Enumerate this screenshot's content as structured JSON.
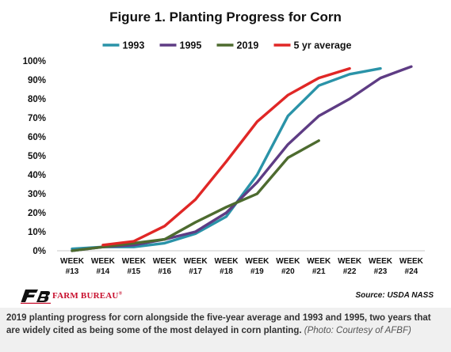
{
  "chart_data": {
    "type": "line",
    "title": "Figure 1. Planting Progress for Corn",
    "categories": [
      "WEEK #13",
      "WEEK #14",
      "WEEK #15",
      "WEEK #16",
      "WEEK #17",
      "WEEK #18",
      "WEEK #19",
      "WEEK #20",
      "WEEK #21",
      "WEEK #22",
      "WEEK #23",
      "WEEK #24"
    ],
    "category_lines": [
      [
        "WEEK",
        "#13"
      ],
      [
        "WEEK",
        "#14"
      ],
      [
        "WEEK",
        "#15"
      ],
      [
        "WEEK",
        "#16"
      ],
      [
        "WEEK",
        "#17"
      ],
      [
        "WEEK",
        "#18"
      ],
      [
        "WEEK",
        "#19"
      ],
      [
        "WEEK",
        "#20"
      ],
      [
        "WEEK",
        "#21"
      ],
      [
        "WEEK",
        "#22"
      ],
      [
        "WEEK",
        "#23"
      ],
      [
        "WEEK",
        "#24"
      ]
    ],
    "ylim": [
      0,
      100
    ],
    "yticks": [
      0,
      10,
      20,
      30,
      40,
      50,
      60,
      70,
      80,
      90,
      100
    ],
    "ytick_labels": [
      "0%",
      "10%",
      "20%",
      "30%",
      "40%",
      "50%",
      "60%",
      "70%",
      "80%",
      "90%",
      "100%"
    ],
    "grid": false,
    "legend_position": "top",
    "series": [
      {
        "name": "1993",
        "color": "#2a93a8",
        "values": [
          1,
          2,
          2,
          4,
          9,
          18,
          40,
          71,
          87,
          93,
          96,
          null
        ]
      },
      {
        "name": "1995",
        "color": "#5e3c84",
        "values": [
          0,
          2,
          3,
          6,
          10,
          20,
          36,
          56,
          71,
          80,
          91,
          97
        ]
      },
      {
        "name": "2019",
        "color": "#4d6b2f",
        "values": [
          0,
          2,
          4,
          6,
          15,
          23,
          30,
          49,
          58,
          null,
          null,
          null
        ]
      },
      {
        "name": "5 yr average",
        "color": "#e02726",
        "values": [
          null,
          3,
          5,
          13,
          27,
          47,
          68,
          82,
          91,
          96,
          null,
          null
        ]
      }
    ]
  },
  "source": "Source: USDA NASS",
  "logo": {
    "text": "FARM BUREAU",
    "mark": "®",
    "color": "#c8102e"
  },
  "caption": {
    "main": "2019 planting progress for corn alongside the five-year average and 1993 and 1995, two years that are widely cited as being some of the most delayed in corn planting.",
    "credit": "(Photo: Courtesy of AFBF)"
  }
}
